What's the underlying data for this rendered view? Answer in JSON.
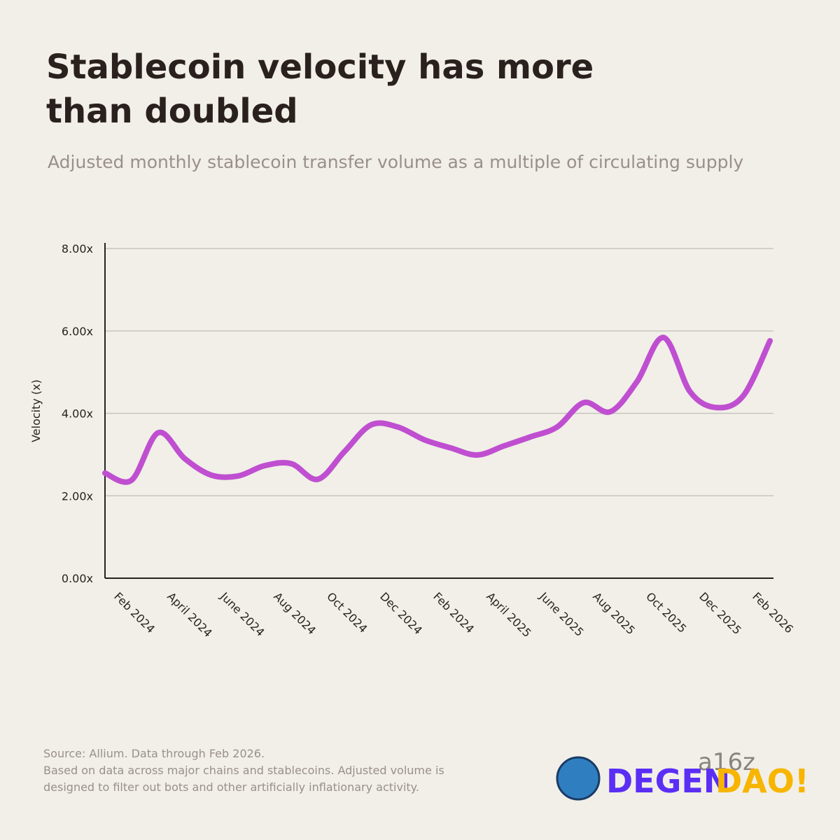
{
  "chart_data": {
    "type": "line",
    "title": [
      "Stablecoin velocity has more",
      "than doubled"
    ],
    "subtitle": "Adjusted monthly stablecoin transfer volume as a multiple of circulating supply",
    "y_label": "Velocity (x)",
    "categories": [
      "Feb 2024",
      null,
      "April 2024",
      null,
      "June 2024",
      null,
      "Aug 2024",
      null,
      "Oct 2024",
      null,
      "Dec 2024",
      null,
      "Feb 2024",
      null,
      "April 2025",
      null,
      "June 2025",
      null,
      "Aug 2025",
      null,
      "Oct 2025",
      null,
      "Dec 2025",
      null,
      "Feb 2026",
      null
    ],
    "series": [
      {
        "name": "Velocity",
        "color": "#bf4fd0",
        "values": [
          2.55,
          2.38,
          3.53,
          2.9,
          2.5,
          2.48,
          2.73,
          2.78,
          2.4,
          3.07,
          3.72,
          3.67,
          3.36,
          3.16,
          2.99,
          3.21,
          3.43,
          3.67,
          4.26,
          4.04,
          4.77,
          5.84,
          4.52,
          4.14,
          4.43,
          5.76
        ]
      }
    ],
    "ylim": [
      0,
      8
    ],
    "yticks": [
      {
        "value": 0,
        "label": "0.00x"
      },
      {
        "value": 2,
        "label": "2.00x"
      },
      {
        "value": 4,
        "label": "4.00x"
      },
      {
        "value": 6,
        "label": "6.00x"
      },
      {
        "value": 8,
        "label": "8.00x"
      }
    ],
    "grid": true,
    "footnote": [
      "Source: Allium. Data through Feb 2026.",
      "Based on data across major chains and stablecoins. Adjusted volume is",
      "designed to filter out bots and other artificially inflationary activity."
    ],
    "watermark": {
      "brand": "a16z",
      "logo_left": "DEGEN",
      "logo_right": "DAO!"
    }
  }
}
